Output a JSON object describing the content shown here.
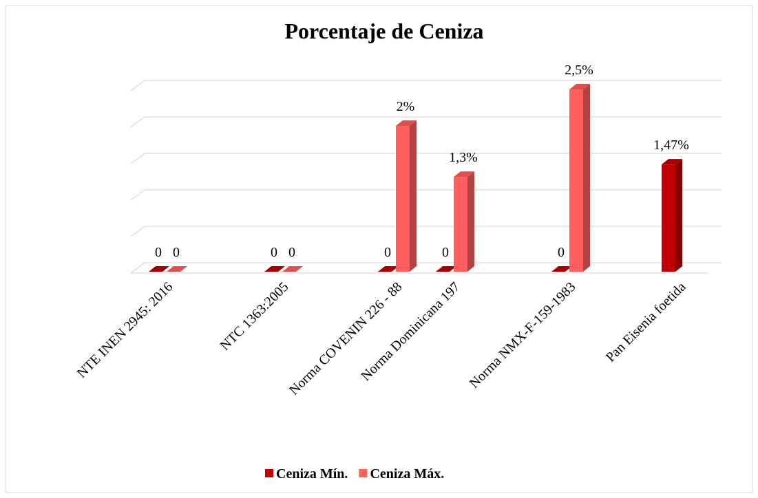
{
  "chart_data": {
    "type": "bar3d",
    "title": "Porcentaje de Ceniza",
    "categories": [
      "NTE INEN 2945: 2016",
      "NTC 1363:2005",
      "Norma COVENIN 226 - 88",
      "Norma Dominicana  197",
      "Norma NMX-F-159-1983",
      "Pan Eisenia foetida"
    ],
    "series": [
      {
        "name": "Ceniza Mín.",
        "color": "#c00000",
        "values": [
          0,
          0,
          0,
          0,
          0,
          1.47
        ],
        "value_labels": [
          "0",
          "0",
          "0",
          "0",
          "0",
          "1,47%"
        ]
      },
      {
        "name": "Ceniza Máx.",
        "color": "#ff5f5f",
        "values": [
          0,
          0,
          2,
          1.3,
          2.5,
          null
        ],
        "value_labels": [
          "0",
          "0",
          "2%",
          "1,3%",
          "2,5%",
          null
        ]
      }
    ],
    "ylim": [
      0,
      2.5
    ],
    "yticks": [
      0,
      0.5,
      1,
      1.5,
      2,
      2.5
    ],
    "grid": true,
    "legend": "bottom"
  }
}
